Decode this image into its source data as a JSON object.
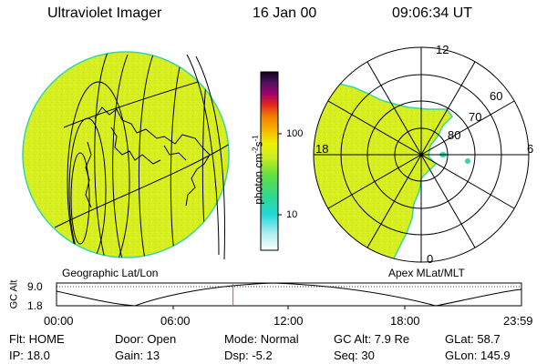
{
  "header": {
    "instrument": "Ultraviolet Imager",
    "date": "16 Jan 00",
    "time": "09:06:34 UT"
  },
  "colorbar": {
    "unit_label": "photon cm",
    "unit_exp1": "-2",
    "unit_s": "s",
    "unit_exp2": "-1",
    "tick_100": "100",
    "tick_10": "10"
  },
  "polar": {
    "label_12": "12",
    "label_18": "18",
    "label_6": "6",
    "label_0": "0",
    "lat_60": "60",
    "lat_70": "70",
    "lat_80": "80"
  },
  "captions": {
    "left": "Geographic Lat/Lon",
    "right": "Apex MLat/MLT"
  },
  "altplot": {
    "ylabel": "GC Alt",
    "y_top": "9.0",
    "y_bottom": "1.8",
    "x_ticks": [
      "00:00",
      "06:00",
      "12:00",
      "18:00",
      "23:59"
    ],
    "current_hour": 9.11
  },
  "status": {
    "flt": "Flt: HOME",
    "door": "Door: Open",
    "mode": "Mode: Normal",
    "gcalt": "GC Alt: 7.9 Re",
    "glat": "GLat:  58.7",
    "ip": "IP: 18.0",
    "gain": "Gain: 13",
    "dsp": "Dsp:    -5.2",
    "seq": "Seq: 30",
    "glon": "GLon: 145.9"
  },
  "colors": {
    "image_fill": "#d7ef1e",
    "image_edge": "#35d6a8",
    "marker": "#ff4040"
  }
}
